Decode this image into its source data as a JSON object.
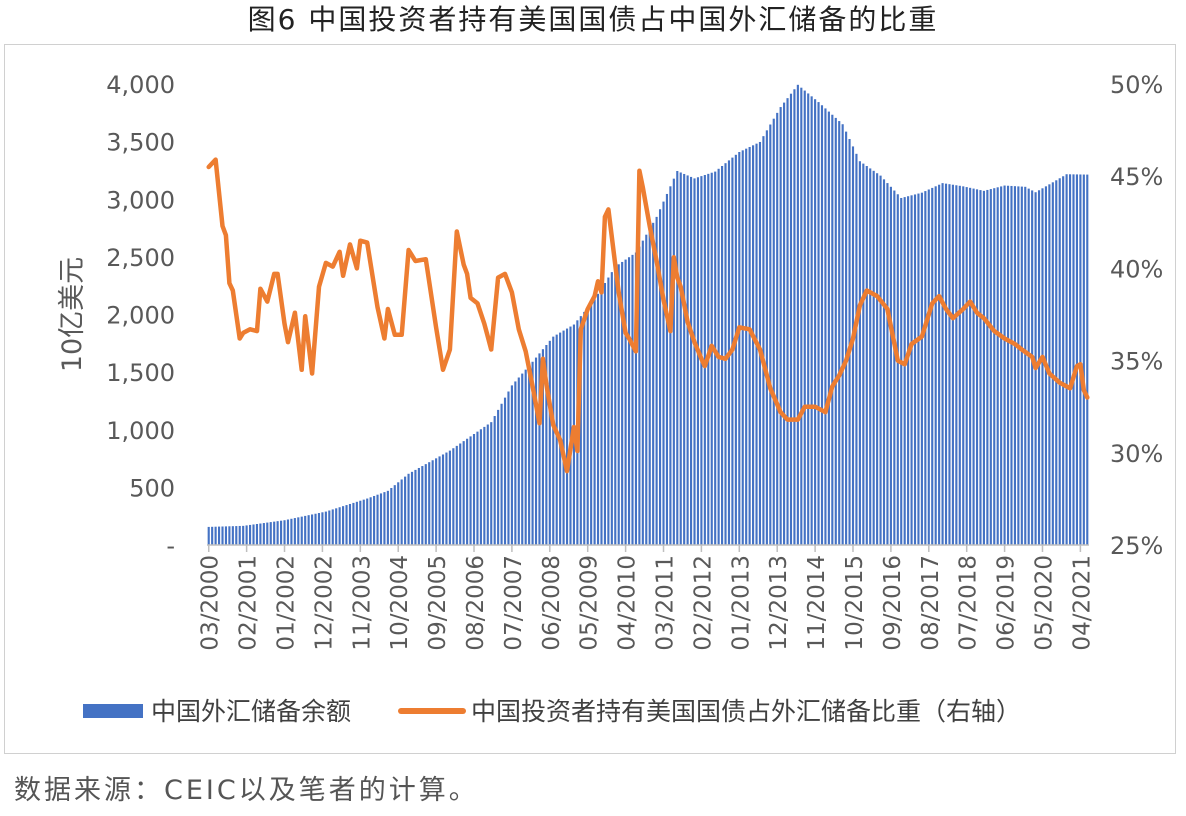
{
  "title": "图6   中国投资者持有美国国债占中国外汇储备的比重",
  "source": "数据来源：CEIC以及笔者的计算。",
  "chart_data": {
    "type": "bar+line",
    "ylabel_left": "10亿美元",
    "ylim_left": [
      0,
      4000
    ],
    "yticks_left": [
      "-",
      "500",
      "1,000",
      "1,500",
      "2,000",
      "2,500",
      "3,000",
      "3,500",
      "4,000"
    ],
    "ylim_right": [
      25,
      50
    ],
    "yticks_right": [
      "25%",
      "30%",
      "35%",
      "40%",
      "45%",
      "50%"
    ],
    "x_tick_labels": [
      "03/2000",
      "02/2001",
      "01/2002",
      "12/2002",
      "11/2003",
      "10/2004",
      "09/2005",
      "08/2006",
      "07/2007",
      "06/2008",
      "05/2009",
      "04/2010",
      "03/2011",
      "02/2012",
      "01/2013",
      "12/2013",
      "11/2014",
      "10/2015",
      "09/2016",
      "08/2017",
      "07/2018",
      "06/2019",
      "05/2020",
      "04/2021"
    ],
    "x_range": [
      "03/2000",
      "06/2021"
    ],
    "legend": {
      "position": "bottom",
      "entries": [
        "中国外汇储备余额",
        "中国投资者持有美国国债占外汇储备比重（右轴）"
      ]
    },
    "series": [
      {
        "name": "中国外汇储备余额",
        "type": "bar",
        "axis": "left",
        "color": "#4472C4",
        "points": [
          [
            "2000-03",
            157
          ],
          [
            "2001-01",
            166
          ],
          [
            "2002-01",
            215
          ],
          [
            "2003-01",
            290
          ],
          [
            "2004-01",
            403
          ],
          [
            "2004-07",
            470
          ],
          [
            "2005-01",
            618
          ],
          [
            "2006-01",
            819
          ],
          [
            "2007-01",
            1066
          ],
          [
            "2007-07",
            1385
          ],
          [
            "2008-01",
            1590
          ],
          [
            "2008-07",
            1808
          ],
          [
            "2009-01",
            1913
          ],
          [
            "2009-07",
            2132
          ],
          [
            "2010-01",
            2415
          ],
          [
            "2010-07",
            2538
          ],
          [
            "2011-01",
            2847
          ],
          [
            "2011-07",
            3245
          ],
          [
            "2011-12",
            3181
          ],
          [
            "2012-06",
            3240
          ],
          [
            "2013-01",
            3410
          ],
          [
            "2013-07",
            3497
          ],
          [
            "2014-01",
            3800
          ],
          [
            "2014-06",
            3993
          ],
          [
            "2014-12",
            3843
          ],
          [
            "2015-07",
            3651
          ],
          [
            "2015-12",
            3330
          ],
          [
            "2016-06",
            3205
          ],
          [
            "2016-12",
            3011
          ],
          [
            "2017-06",
            3057
          ],
          [
            "2017-12",
            3140
          ],
          [
            "2018-06",
            3112
          ],
          [
            "2018-12",
            3073
          ],
          [
            "2019-06",
            3119
          ],
          [
            "2019-12",
            3108
          ],
          [
            "2020-03",
            3061
          ],
          [
            "2020-06",
            3112
          ],
          [
            "2020-12",
            3217
          ],
          [
            "2021-06",
            3214
          ]
        ]
      },
      {
        "name": "中国投资者持有美国国债占外汇储备比重（右轴）",
        "type": "line",
        "axis": "right",
        "color": "#ED7D31",
        "points": [
          [
            "2000-03",
            45.5
          ],
          [
            "2000-05",
            45.9
          ],
          [
            "2000-07",
            42.3
          ],
          [
            "2000-08",
            41.8
          ],
          [
            "2000-09",
            39.2
          ],
          [
            "2000-10",
            38.8
          ],
          [
            "2000-12",
            36.2
          ],
          [
            "2001-01",
            36.5
          ],
          [
            "2001-03",
            36.7
          ],
          [
            "2001-05",
            36.6
          ],
          [
            "2001-06",
            38.9
          ],
          [
            "2001-08",
            38.2
          ],
          [
            "2001-10",
            39.7
          ],
          [
            "2001-11",
            39.7
          ],
          [
            "2002-01",
            37.0
          ],
          [
            "2002-02",
            36.0
          ],
          [
            "2002-04",
            37.6
          ],
          [
            "2002-06",
            34.5
          ],
          [
            "2002-07",
            37.4
          ],
          [
            "2002-09",
            34.3
          ],
          [
            "2002-11",
            39.0
          ],
          [
            "2003-01",
            40.3
          ],
          [
            "2003-03",
            40.1
          ],
          [
            "2003-05",
            40.9
          ],
          [
            "2003-06",
            39.6
          ],
          [
            "2003-08",
            41.3
          ],
          [
            "2003-10",
            40.0
          ],
          [
            "2003-11",
            41.5
          ],
          [
            "2004-01",
            41.4
          ],
          [
            "2004-04",
            37.9
          ],
          [
            "2004-06",
            36.2
          ],
          [
            "2004-07",
            37.8
          ],
          [
            "2004-09",
            36.4
          ],
          [
            "2004-11",
            36.4
          ],
          [
            "2005-01",
            41.0
          ],
          [
            "2005-03",
            40.4
          ],
          [
            "2005-06",
            40.5
          ],
          [
            "2005-09",
            36.8
          ],
          [
            "2005-11",
            34.5
          ],
          [
            "2006-01",
            35.6
          ],
          [
            "2006-03",
            42.0
          ],
          [
            "2006-05",
            40.2
          ],
          [
            "2006-06",
            39.7
          ],
          [
            "2006-07",
            38.4
          ],
          [
            "2006-09",
            38.1
          ],
          [
            "2006-11",
            37.0
          ],
          [
            "2006-12",
            36.3
          ],
          [
            "2007-01",
            35.6
          ],
          [
            "2007-03",
            39.5
          ],
          [
            "2007-05",
            39.7
          ],
          [
            "2007-07",
            38.7
          ],
          [
            "2007-09",
            36.7
          ],
          [
            "2007-11",
            35.5
          ],
          [
            "2008-01",
            33.6
          ],
          [
            "2008-03",
            31.6
          ],
          [
            "2008-04",
            35.1
          ],
          [
            "2008-05",
            33.7
          ],
          [
            "2008-07",
            31.5
          ],
          [
            "2008-09",
            30.7
          ],
          [
            "2008-11",
            29.0
          ],
          [
            "2009-01",
            31.4
          ],
          [
            "2009-02",
            30.1
          ],
          [
            "2009-03",
            36.7
          ],
          [
            "2009-05",
            37.8
          ],
          [
            "2009-07",
            38.5
          ],
          [
            "2009-08",
            39.3
          ],
          [
            "2009-09",
            38.7
          ],
          [
            "2009-10",
            42.8
          ],
          [
            "2009-11",
            43.2
          ],
          [
            "2010-02",
            38.7
          ],
          [
            "2010-04",
            36.5
          ],
          [
            "2010-05",
            36.2
          ],
          [
            "2010-07",
            35.5
          ],
          [
            "2010-08",
            45.3
          ],
          [
            "2010-09",
            44.4
          ],
          [
            "2010-11",
            42.3
          ],
          [
            "2011-01",
            40.4
          ],
          [
            "2011-03",
            38.3
          ],
          [
            "2011-05",
            36.6
          ],
          [
            "2011-06",
            40.6
          ],
          [
            "2011-07",
            39.5
          ],
          [
            "2011-08",
            39.0
          ],
          [
            "2011-10",
            37.1
          ],
          [
            "2011-12",
            36.0
          ],
          [
            "2012-02",
            35.1
          ],
          [
            "2012-03",
            34.7
          ],
          [
            "2012-05",
            35.8
          ],
          [
            "2012-07",
            35.2
          ],
          [
            "2012-09",
            35.1
          ],
          [
            "2012-11",
            35.6
          ],
          [
            "2013-01",
            36.8
          ],
          [
            "2013-04",
            36.7
          ],
          [
            "2013-07",
            35.6
          ],
          [
            "2013-10",
            33.5
          ],
          [
            "2014-01",
            32.2
          ],
          [
            "2014-03",
            31.8
          ],
          [
            "2014-06",
            31.8
          ],
          [
            "2014-08",
            32.5
          ],
          [
            "2014-11",
            32.5
          ],
          [
            "2015-02",
            32.2
          ],
          [
            "2015-04",
            33.6
          ],
          [
            "2015-06",
            34.2
          ],
          [
            "2015-08",
            35.0
          ],
          [
            "2015-10",
            36.2
          ],
          [
            "2015-12",
            38.0
          ],
          [
            "2016-02",
            38.8
          ],
          [
            "2016-05",
            38.5
          ],
          [
            "2016-08",
            37.8
          ],
          [
            "2016-11",
            35.0
          ],
          [
            "2017-01",
            34.8
          ],
          [
            "2017-03",
            35.9
          ],
          [
            "2017-06",
            36.3
          ],
          [
            "2017-09",
            38.1
          ],
          [
            "2017-11",
            38.5
          ],
          [
            "2018-01",
            37.8
          ],
          [
            "2018-03",
            37.3
          ],
          [
            "2018-06",
            37.8
          ],
          [
            "2018-08",
            38.2
          ],
          [
            "2018-10",
            37.6
          ],
          [
            "2018-12",
            37.3
          ],
          [
            "2019-03",
            36.6
          ],
          [
            "2019-06",
            36.2
          ],
          [
            "2019-09",
            35.9
          ],
          [
            "2019-11",
            35.6
          ],
          [
            "2020-02",
            35.2
          ],
          [
            "2020-03",
            34.6
          ],
          [
            "2020-05",
            35.2
          ],
          [
            "2020-07",
            34.3
          ],
          [
            "2020-10",
            33.8
          ],
          [
            "2021-01",
            33.5
          ],
          [
            "2021-03",
            34.7
          ],
          [
            "2021-04",
            34.8
          ],
          [
            "2021-05",
            33.4
          ],
          [
            "2021-06",
            33.0
          ]
        ]
      }
    ]
  }
}
